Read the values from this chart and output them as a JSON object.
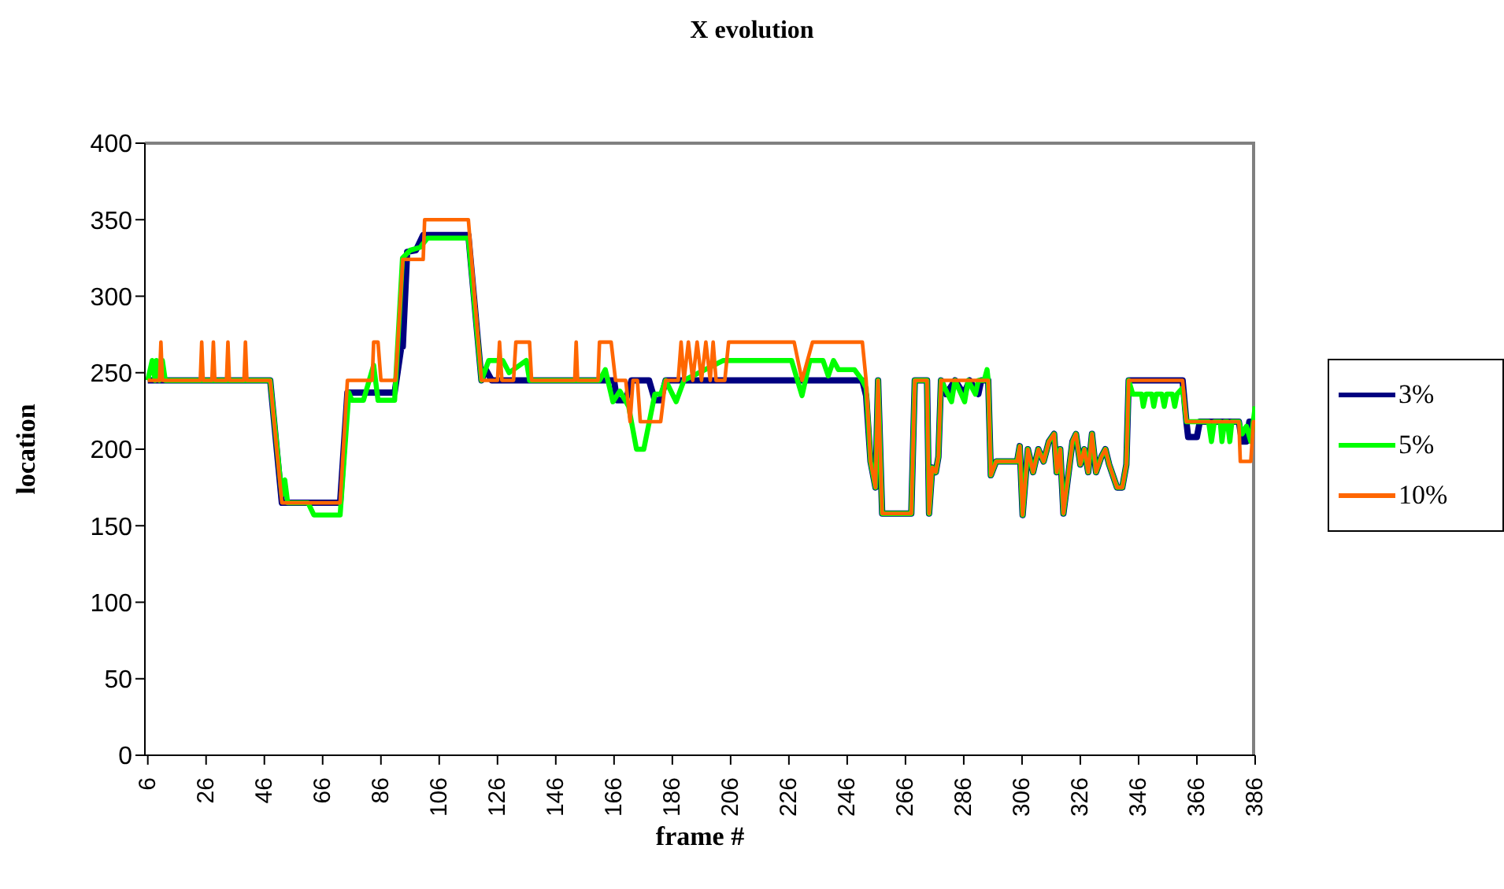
{
  "chart_data": {
    "type": "line",
    "title": "X evolution",
    "xlabel": "frame #",
    "ylabel": "location",
    "xlim": [
      5,
      386
    ],
    "xticks": [
      6,
      26,
      46,
      66,
      86,
      106,
      126,
      146,
      166,
      186,
      206,
      226,
      246,
      266,
      286,
      306,
      326,
      346,
      366,
      386
    ],
    "ylim": [
      0,
      400
    ],
    "yticks": [
      0,
      50,
      100,
      150,
      200,
      250,
      300,
      350,
      400
    ],
    "grid": false,
    "legend": "right",
    "marker": "none",
    "line_style": "solid",
    "series": [
      {
        "name": "3%",
        "color": "#000080",
        "x": [
          6,
          48,
          52,
          72,
          74.5,
          90.7,
          93,
          93.5,
          95,
          98,
          100.5,
          116,
          120.5,
          122,
          124,
          166,
          167,
          170,
          172,
          178,
          180,
          182,
          183.7,
          251.2,
          252.5,
          254,
          255.7,
          256.6,
          258,
          268,
          269.2,
          273.4,
          274.1,
          275.2,
          276.4,
          277.3,
          278.2,
          280,
          283,
          286,
          288,
          291,
          292,
          294.4,
          295.3,
          297.1,
          304.3,
          305.2,
          306.2,
          308,
          309.8,
          311.6,
          313.4,
          315.2,
          317,
          317.9,
          319.1,
          320.2,
          322,
          323.3,
          324.5,
          326,
          327.4,
          328.7,
          330,
          331.4,
          333.2,
          334.6,
          335.9,
          338.6,
          340.4,
          341.8,
          342.6,
          361.1,
          362.4,
          363,
          366,
          367,
          380.4,
          381.5,
          383,
          384,
          386
        ],
        "values": [
          245,
          245,
          165,
          165,
          237,
          237,
          267,
          267,
          329,
          330,
          340,
          340,
          245,
          252,
          245,
          245,
          232,
          232,
          245,
          245,
          232,
          232,
          245,
          245,
          235,
          192,
          175,
          245,
          158,
          158,
          245,
          245,
          158,
          188,
          185,
          195,
          245,
          236,
          245,
          236,
          245,
          236,
          245,
          245,
          183,
          192,
          192,
          202,
          157,
          200,
          185,
          200,
          192,
          205,
          210,
          185,
          200,
          158,
          185,
          205,
          210,
          190,
          200,
          185,
          210,
          185,
          195,
          200,
          190,
          175,
          175,
          190,
          245,
          245,
          218,
          208,
          208,
          218,
          218,
          205,
          205,
          218,
          218
        ]
      },
      {
        "name": "5%",
        "color": "#00ff00",
        "x": [
          6,
          7.5,
          8.5,
          9,
          10,
          11,
          12,
          48,
          52,
          53,
          54,
          61,
          63,
          72,
          75,
          76,
          80,
          83.5,
          85,
          90.7,
          93.4,
          96,
          99.5,
          102,
          116,
          120.5,
          123,
          127.8,
          130,
          135.9,
          137,
          161,
          163,
          165.6,
          168,
          171,
          173.7,
          176.2,
          180,
          182,
          183.7,
          187.3,
          190,
          203.5,
          226.9,
          230.5,
          233.2,
          237.7,
          239.5,
          241.3,
          243,
          248.5,
          251.2,
          252.5,
          254,
          255.7,
          256.6,
          258,
          268,
          269.2,
          273.4,
          274.1,
          275.2,
          276.4,
          277.3,
          278.2,
          281.8,
          283,
          286.3,
          287.5,
          290,
          291,
          293,
          294,
          294.4,
          295.3,
          297.1,
          304.3,
          305.2,
          306.2,
          308,
          309.8,
          311.6,
          313.4,
          315.2,
          317,
          317.9,
          319.1,
          320.2,
          322,
          323.3,
          324.5,
          326,
          327.4,
          328.7,
          330,
          331.4,
          333.2,
          334.6,
          335.9,
          338.6,
          340.4,
          341.8,
          342.6,
          344,
          347,
          347.6,
          348.5,
          350.5,
          351.2,
          352,
          354,
          354.8,
          355.6,
          357.6,
          358.4,
          359.2,
          361.1,
          362.4,
          370,
          371,
          372,
          374,
          374.6,
          375.5,
          376.5,
          377.3,
          378,
          380.4,
          381.5,
          383,
          384.5,
          386
        ],
        "values": [
          245,
          258,
          245,
          258,
          245,
          258,
          245,
          245,
          170,
          180,
          165,
          165,
          157,
          157,
          237,
          232,
          232,
          255,
          232,
          232,
          325,
          330,
          332,
          338,
          338,
          245,
          258,
          258,
          250,
          258,
          245,
          245,
          252,
          231,
          238,
          228,
          200,
          200,
          236,
          236,
          245,
          231,
          245,
          258,
          258,
          235,
          258,
          258,
          248,
          258,
          252,
          252,
          245,
          240,
          192,
          175,
          245,
          158,
          158,
          245,
          245,
          158,
          188,
          185,
          195,
          245,
          231,
          245,
          231,
          245,
          236,
          245,
          245,
          252,
          245,
          183,
          192,
          192,
          202,
          157,
          200,
          185,
          200,
          192,
          205,
          210,
          185,
          200,
          158,
          185,
          205,
          210,
          190,
          200,
          185,
          210,
          185,
          195,
          200,
          190,
          175,
          175,
          190,
          245,
          236,
          236,
          228,
          236,
          236,
          228,
          236,
          236,
          228,
          236,
          236,
          228,
          236,
          240,
          218,
          218,
          205,
          218,
          218,
          205,
          218,
          218,
          205,
          218,
          218,
          210,
          215,
          205,
          228
        ]
      },
      {
        "name": "10%",
        "color": "#ff6600",
        "x": [
          6,
          10,
          10.5,
          11,
          24,
          24.5,
          25,
          28,
          28.5,
          29,
          33,
          33.5,
          34,
          39,
          39.5,
          40,
          48,
          52,
          72,
          74.5,
          83,
          83.5,
          85,
          86,
          91,
          93.5,
          100.5,
          101,
          116,
          120.5,
          126,
          126.7,
          127.5,
          131.5,
          132.3,
          137,
          137.7,
          152.5,
          153,
          153.5,
          160.5,
          161,
          165,
          166.5,
          170,
          171.5,
          172.5,
          174,
          175,
          182,
          183.7,
          188,
          189,
          190,
          191.5,
          193,
          194.5,
          196,
          197.5,
          199,
          200,
          201,
          204,
          205.3,
          227.8,
          230.5,
          234.1,
          251.2,
          252.5,
          254,
          255.7,
          256.6,
          258,
          268,
          269.2,
          273.4,
          274.1,
          275.2,
          276.4,
          277.3,
          278.2,
          294.4,
          295.3,
          297.1,
          304.3,
          305.2,
          306.2,
          308,
          309.8,
          311.6,
          313.4,
          315.2,
          317,
          317.9,
          319.1,
          320.2,
          322,
          323.3,
          324.5,
          326,
          327.4,
          328.7,
          330,
          331.4,
          333.2,
          334.6,
          335.9,
          338.6,
          340.4,
          341.8,
          342.6,
          361.1,
          362.4,
          380.4,
          380.9,
          384.5,
          385.4,
          386
        ],
        "values": [
          245,
          245,
          270,
          245,
          245,
          270,
          245,
          245,
          270,
          245,
          245,
          270,
          245,
          245,
          270,
          245,
          245,
          165,
          165,
          245,
          245,
          270,
          270,
          245,
          245,
          324,
          324,
          350,
          350,
          245,
          245,
          270,
          245,
          245,
          270,
          270,
          245,
          245,
          270,
          245,
          245,
          270,
          270,
          245,
          245,
          218,
          245,
          245,
          218,
          218,
          245,
          245,
          270,
          245,
          270,
          245,
          270,
          245,
          270,
          245,
          270,
          245,
          245,
          270,
          270,
          245,
          270,
          270,
          245,
          192,
          175,
          245,
          158,
          158,
          245,
          245,
          158,
          188,
          185,
          195,
          245,
          245,
          183,
          192,
          192,
          202,
          157,
          200,
          185,
          200,
          192,
          205,
          210,
          185,
          200,
          158,
          185,
          205,
          210,
          190,
          200,
          185,
          210,
          185,
          195,
          200,
          190,
          175,
          175,
          190,
          245,
          245,
          218,
          218,
          192,
          192,
          218,
          218
        ]
      }
    ]
  }
}
